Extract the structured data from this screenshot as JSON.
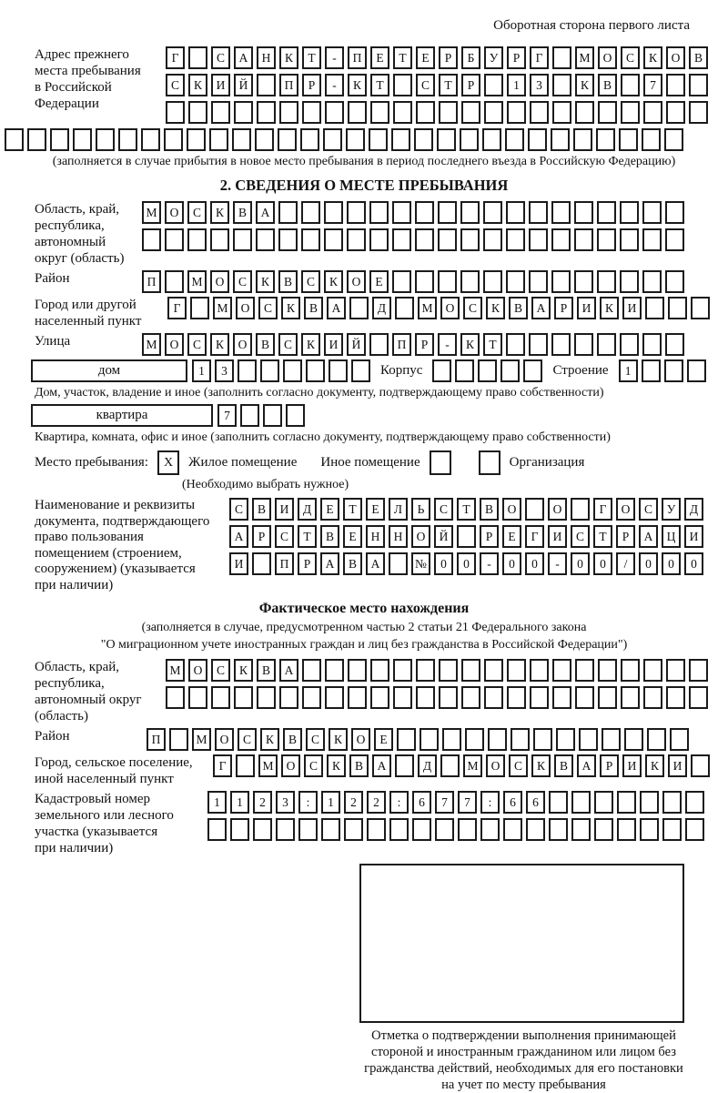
{
  "page": {
    "header_note": "Оборотная сторона первого листа"
  },
  "prev_address": {
    "label_lines": [
      "Адрес прежнего",
      "места пребывания",
      "в Российской",
      "Федерации"
    ],
    "rows": [
      {
        "text": "Г САНКТ-ПЕТЕРБУРГ МОСКОВ",
        "len": 24
      },
      {
        "text": "СКИЙ ПР-КТ СТР 13 КВ 7",
        "len": 24
      },
      {
        "text": "",
        "len": 24
      }
    ],
    "full_row": {
      "text": "",
      "len": 30
    },
    "caption": "(заполняется в случае прибытия в новое место пребывания в период последнего въезда в Российскую Федерацию)"
  },
  "section2": {
    "title": "2. СВЕДЕНИЯ О МЕСТЕ ПРЕБЫВАНИЯ",
    "oblast": {
      "label_lines": [
        "Область, край,",
        "республика,",
        "автономный",
        "округ (область)"
      ],
      "rows": [
        {
          "text": "МОСКВА",
          "len": 24
        },
        {
          "text": "",
          "len": 24
        }
      ]
    },
    "raion": {
      "label": "Район",
      "row": {
        "text": "П МОСКВСКОЕ",
        "len": 24
      }
    },
    "gorod": {
      "label_lines": [
        "Город или другой",
        "населенный пункт"
      ],
      "row": {
        "text": "Г МОСКВА Д МОСКВАРИКИ",
        "len": 24
      }
    },
    "ulitsa": {
      "label": "Улица",
      "row": {
        "text": "МОСКОВСКИЙ ПР-КТ",
        "len": 24
      }
    },
    "dom": {
      "box_label": "дом",
      "cells": {
        "text": "13",
        "len": 8
      },
      "korpus_label": "Корпус",
      "korpus_cells": {
        "text": "",
        "len": 5
      },
      "stroenie_label": "Строение",
      "stroenie_cells": {
        "text": "1",
        "len": 4
      },
      "caption": "Дом, участок, владение и иное (заполнить согласно документу, подтверждающему право собственности)"
    },
    "kvartira": {
      "box_label": "квартира",
      "cells": {
        "text": "7",
        "len": 4
      },
      "caption": "Квартира, комната, офис и иное (заполнить согласно документу, подтверждающему право собственности)"
    },
    "mesto": {
      "label": "Место пребывания:",
      "options": [
        {
          "mark": "X",
          "label": "Жилое помещение"
        },
        {
          "mark": "",
          "label": "Иное помещение"
        },
        {
          "mark": "",
          "label": "Организация"
        }
      ],
      "note": "(Необходимо выбрать нужное)"
    },
    "document": {
      "label_lines": [
        "Наименование и реквизиты",
        "документа, подтверждающего",
        "право пользования",
        "помещением (строением,",
        "сооружением) (указывается",
        "при наличии)"
      ],
      "rows": [
        {
          "text": "СВИДЕТЕЛЬСТВО О ГОСУД",
          "len": 21
        },
        {
          "text": "АРСТВЕННОЙ РЕГИСТРАЦИ",
          "len": 21
        },
        {
          "text": "И ПРАВА №00-00-00/000",
          "len": 21
        }
      ]
    }
  },
  "factual": {
    "title": "Фактическое место нахождения",
    "caption_lines": [
      "(заполняется в случае, предусмотренном частью 2 статьи 21 Федерального закона",
      "\"О миграционном учете иностранных граждан и лиц без гражданства в Российской Федерации\")"
    ],
    "oblast": {
      "label_lines": [
        "Область, край,",
        "республика,",
        "автономный округ",
        "(область)"
      ],
      "rows": [
        {
          "text": "МОСКВА",
          "len": 24
        },
        {
          "text": "",
          "len": 24
        }
      ]
    },
    "raion": {
      "label": "Район",
      "row": {
        "text": "П МОСКВСКОЕ",
        "len": 24
      }
    },
    "gorod": {
      "label_lines": [
        "Город, сельское поселение,",
        "иной населенный пункт"
      ],
      "row": {
        "text": "Г МОСКВА Д МОСКВАРИКИ",
        "len": 22
      }
    },
    "kadastr": {
      "label_lines": [
        "Кадастровый номер",
        "земельного или лесного",
        "участка (указывается",
        "при наличии)"
      ],
      "rows": [
        {
          "text": "1123:122:677:66",
          "len": 22
        },
        {
          "text": "",
          "len": 22
        }
      ]
    },
    "stamp_caption_lines": [
      "Отметка о подтверждении выполнения принимающей",
      "стороной и иностранным гражданином или лицом без",
      "гражданства действий, необходимых для его постановки",
      "на учет по месту пребывания"
    ]
  }
}
